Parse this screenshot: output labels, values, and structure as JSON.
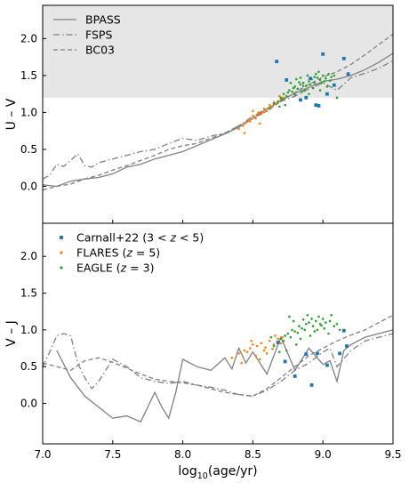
{
  "chart_data": [
    {
      "type": "line",
      "panel": "top",
      "xlim": [
        7.0,
        9.5
      ],
      "ylim": [
        -0.5,
        2.45
      ],
      "ylabel": "U – V",
      "yticks": [
        "0.0",
        "0.5",
        "1.0",
        "1.5",
        "2.0"
      ],
      "yticks_values": [
        0.0,
        0.5,
        1.0,
        1.5,
        2.0
      ],
      "shaded_region": {
        "y_from": 1.2,
        "y_to": 2.45,
        "color": "#e6e6e6"
      },
      "legend": {
        "placement": "top-left",
        "entries": [
          {
            "label": "BPASS",
            "style": "solid"
          },
          {
            "label": "FSPS",
            "style": "dashdot"
          },
          {
            "label": "BC03",
            "style": "dashed"
          }
        ]
      },
      "series": [
        {
          "name": "BPASS",
          "style": "solid",
          "color": "#808080",
          "x": [
            7.0,
            7.1,
            7.2,
            7.3,
            7.4,
            7.5,
            7.6,
            7.7,
            7.8,
            7.9,
            8.0,
            8.1,
            8.2,
            8.3,
            8.4,
            8.5,
            8.6,
            8.7,
            8.8,
            8.9,
            9.0,
            9.1,
            9.2,
            9.3,
            9.4,
            9.5
          ],
          "y": [
            0.02,
            0.0,
            0.07,
            0.1,
            0.12,
            0.17,
            0.26,
            0.3,
            0.37,
            0.42,
            0.47,
            0.55,
            0.63,
            0.71,
            0.8,
            0.92,
            1.05,
            1.16,
            1.26,
            1.34,
            1.42,
            1.45,
            1.5,
            1.58,
            1.68,
            1.8
          ]
        },
        {
          "name": "FSPS",
          "style": "dashdot",
          "color": "#808080",
          "x": [
            7.0,
            7.05,
            7.1,
            7.15,
            7.2,
            7.25,
            7.3,
            7.35,
            7.4,
            7.5,
            7.6,
            7.7,
            7.8,
            7.9,
            8.0,
            8.1,
            8.2,
            8.3,
            8.4,
            8.5,
            8.6,
            8.7,
            8.8,
            8.9,
            9.0,
            9.1,
            9.2,
            9.3,
            9.4,
            9.5
          ],
          "y": [
            0.1,
            0.15,
            0.3,
            0.27,
            0.35,
            0.44,
            0.28,
            0.26,
            0.32,
            0.37,
            0.42,
            0.47,
            0.5,
            0.58,
            0.65,
            0.62,
            0.68,
            0.72,
            0.82,
            0.95,
            1.05,
            1.15,
            1.22,
            1.32,
            1.4,
            1.3,
            1.47,
            1.53,
            1.6,
            1.7
          ]
        },
        {
          "name": "BC03",
          "style": "dashed",
          "color": "#808080",
          "x": [
            7.0,
            7.1,
            7.2,
            7.3,
            7.4,
            7.5,
            7.6,
            7.7,
            7.8,
            7.9,
            8.0,
            8.1,
            8.2,
            8.3,
            8.4,
            8.5,
            8.6,
            8.7,
            8.8,
            8.9,
            9.0,
            9.1,
            9.2,
            9.3,
            9.4,
            9.5
          ],
          "y": [
            -0.05,
            0.0,
            0.03,
            0.1,
            0.15,
            0.22,
            0.28,
            0.35,
            0.42,
            0.5,
            0.55,
            0.58,
            0.65,
            0.72,
            0.82,
            0.92,
            1.02,
            1.15,
            1.27,
            1.38,
            1.48,
            1.55,
            1.65,
            1.78,
            1.92,
            2.06
          ]
        }
      ],
      "scatter": {
        "carnall": {
          "name": "Carnall+22 (3 < z < 5)",
          "color": "#1f77b4",
          "x": [
            8.67,
            8.74,
            8.84,
            8.88,
            8.91,
            8.95,
            8.97,
            9.0,
            9.03,
            9.08,
            9.15,
            9.18
          ],
          "y": [
            1.69,
            1.44,
            1.17,
            1.2,
            1.46,
            1.1,
            1.09,
            1.79,
            1.25,
            1.37,
            1.73,
            1.52
          ]
        },
        "flares": {
          "name": "FLARES (z = 5)",
          "color": "#ff7f0e",
          "x": [
            8.4,
            8.43,
            8.45,
            8.47,
            8.5,
            8.52,
            8.54,
            8.56,
            8.58,
            8.6,
            8.62,
            8.64,
            8.66,
            8.68,
            8.7,
            8.72,
            8.44,
            8.48,
            8.53,
            8.57,
            8.61,
            8.65,
            8.69,
            8.5,
            8.55
          ],
          "y": [
            0.78,
            0.82,
            0.86,
            0.9,
            0.95,
            0.92,
            1.0,
            0.98,
            1.05,
            1.02,
            1.1,
            1.08,
            1.12,
            1.15,
            1.18,
            1.2,
            0.72,
            0.88,
            0.97,
            1.0,
            1.06,
            1.14,
            1.22,
            1.02,
            0.85
          ]
        },
        "eagle": {
          "name": "EAGLE (z = 3)",
          "color": "#2ca02c",
          "x": [
            8.62,
            8.65,
            8.68,
            8.7,
            8.72,
            8.74,
            8.76,
            8.78,
            8.8,
            8.82,
            8.84,
            8.86,
            8.88,
            8.9,
            8.92,
            8.94,
            8.96,
            8.98,
            9.0,
            9.02,
            9.04,
            9.06,
            9.08,
            8.71,
            8.75,
            8.79,
            8.83,
            8.87,
            8.91,
            8.95,
            8.99,
            9.03,
            8.77,
            8.81,
            8.85,
            8.89,
            8.93,
            8.97,
            9.01,
            8.86,
            8.9,
            8.94,
            8.8,
            8.84,
            8.98,
            9.05,
            8.73,
            8.69,
            9.1
          ],
          "y": [
            1.05,
            1.12,
            1.15,
            1.2,
            1.25,
            1.22,
            1.3,
            1.28,
            1.35,
            1.32,
            1.38,
            1.4,
            1.36,
            1.42,
            1.45,
            1.4,
            1.47,
            1.44,
            1.5,
            1.46,
            1.52,
            1.48,
            1.5,
            1.18,
            1.27,
            1.33,
            1.41,
            1.3,
            1.38,
            1.52,
            1.4,
            1.35,
            1.4,
            1.45,
            1.28,
            1.5,
            1.33,
            1.55,
            1.42,
            1.36,
            1.25,
            1.48,
            1.24,
            1.47,
            1.3,
            1.43,
            1.1,
            1.08,
            1.2
          ]
        }
      }
    },
    {
      "type": "line",
      "panel": "bottom",
      "xlim": [
        7.0,
        9.5
      ],
      "ylim": [
        -0.55,
        2.45
      ],
      "xlabel": "log10(age/yr)",
      "ylabel": "V – J",
      "xticks": [
        "7.0",
        "7.5",
        "8.0",
        "8.5",
        "9.0",
        "9.5"
      ],
      "xticks_values": [
        7.0,
        7.5,
        8.0,
        8.5,
        9.0,
        9.5
      ],
      "yticks": [
        "0.0",
        "0.5",
        "1.0",
        "1.5",
        "2.0"
      ],
      "yticks_values": [
        0.0,
        0.5,
        1.0,
        1.5,
        2.0
      ],
      "legend": {
        "placement": "top-left",
        "entries": [
          {
            "label_parts": [
              "Carnall+22 (3 < ",
              "z",
              " < 5)"
            ],
            "marker": "square",
            "color": "#1f77b4"
          },
          {
            "label_parts": [
              "FLARES (",
              "z",
              " = 5)"
            ],
            "marker": "dot",
            "color": "#ff7f0e"
          },
          {
            "label_parts": [
              "EAGLE (",
              "z",
              " = 3)"
            ],
            "marker": "dot",
            "color": "#2ca02c"
          }
        ]
      },
      "series": [
        {
          "name": "BPASS",
          "style": "solid",
          "color": "#808080",
          "x": [
            7.1,
            7.2,
            7.3,
            7.4,
            7.5,
            7.6,
            7.7,
            7.8,
            7.85,
            7.9,
            7.95,
            8.0,
            8.1,
            8.2,
            8.3,
            8.35,
            8.4,
            8.45,
            8.5,
            8.6,
            8.7,
            8.8,
            8.9,
            9.0,
            9.05,
            9.1,
            9.15,
            9.2,
            9.3,
            9.4,
            9.5
          ],
          "y": [
            0.72,
            0.35,
            0.1,
            -0.05,
            -0.2,
            -0.17,
            -0.25,
            0.15,
            -0.05,
            -0.2,
            0.15,
            0.6,
            0.5,
            0.45,
            0.62,
            0.47,
            0.75,
            0.55,
            0.7,
            0.4,
            0.9,
            0.45,
            0.75,
            0.53,
            0.58,
            0.3,
            0.72,
            0.8,
            0.9,
            0.95,
            1.0
          ]
        },
        {
          "name": "FSPS",
          "style": "dashdot",
          "color": "#808080",
          "x": [
            7.0,
            7.05,
            7.1,
            7.15,
            7.2,
            7.25,
            7.3,
            7.35,
            7.4,
            7.5,
            7.6,
            7.7,
            7.8,
            7.9,
            8.0,
            8.1,
            8.2,
            8.3,
            8.4,
            8.5,
            8.6,
            8.7,
            8.8,
            8.9,
            9.0,
            9.05,
            9.1,
            9.2,
            9.3,
            9.4,
            9.5
          ],
          "y": [
            0.5,
            0.7,
            0.92,
            0.95,
            0.92,
            0.55,
            0.35,
            0.2,
            0.3,
            0.6,
            0.5,
            0.35,
            0.3,
            0.27,
            0.3,
            0.25,
            0.22,
            0.18,
            0.12,
            0.1,
            0.18,
            0.3,
            0.45,
            0.55,
            0.7,
            0.75,
            0.5,
            0.72,
            0.85,
            0.9,
            0.95
          ]
        },
        {
          "name": "BC03",
          "style": "dashed",
          "color": "#808080",
          "x": [
            7.0,
            7.1,
            7.2,
            7.3,
            7.4,
            7.5,
            7.6,
            7.7,
            7.8,
            7.9,
            8.0,
            8.1,
            8.2,
            8.3,
            8.4,
            8.5,
            8.6,
            8.7,
            8.8,
            8.9,
            9.0,
            9.1,
            9.2,
            9.3,
            9.4,
            9.5
          ],
          "y": [
            0.55,
            0.5,
            0.45,
            0.58,
            0.62,
            0.56,
            0.48,
            0.4,
            0.33,
            0.3,
            0.28,
            0.25,
            0.2,
            0.15,
            0.12,
            0.1,
            0.2,
            0.35,
            0.5,
            0.65,
            0.75,
            0.85,
            0.93,
            1.0,
            1.1,
            1.2
          ]
        }
      ],
      "scatter": {
        "carnall": {
          "name": "Carnall+22 (3 < z < 5)",
          "color": "#1f77b4",
          "x": [
            8.68,
            8.73,
            8.8,
            8.88,
            8.92,
            8.96,
            9.03,
            9.12,
            9.15,
            9.17
          ],
          "y": [
            0.83,
            0.57,
            0.37,
            0.67,
            0.25,
            0.68,
            0.52,
            0.68,
            0.99,
            0.78
          ]
        },
        "flares": {
          "name": "FLARES (z = 5)",
          "color": "#ff7f0e",
          "x": [
            8.35,
            8.4,
            8.44,
            8.48,
            8.5,
            8.53,
            8.56,
            8.59,
            8.62,
            8.65,
            8.68,
            8.71,
            8.42,
            8.46,
            8.52,
            8.58,
            8.64,
            8.7,
            8.55,
            8.6,
            8.49,
            8.66
          ],
          "y": [
            0.62,
            0.68,
            0.72,
            0.75,
            0.8,
            0.78,
            0.82,
            0.76,
            0.85,
            0.8,
            0.88,
            0.9,
            0.55,
            0.7,
            0.65,
            0.72,
            0.74,
            0.82,
            0.6,
            0.68,
            0.85,
            0.92
          ]
        },
        "eagle": {
          "name": "EAGLE (z = 3)",
          "color": "#2ca02c",
          "x": [
            8.65,
            8.68,
            8.7,
            8.73,
            8.75,
            8.78,
            8.8,
            8.83,
            8.85,
            8.88,
            8.9,
            8.93,
            8.95,
            8.98,
            9.0,
            9.02,
            9.05,
            9.08,
            9.1,
            8.72,
            8.77,
            8.82,
            8.87,
            8.92,
            8.97,
            9.01,
            9.04,
            8.79,
            8.84,
            8.89,
            8.94,
            8.99,
            8.86,
            8.91,
            8.96,
            8.81,
            8.76,
            9.06,
            8.74,
            8.69,
            9.12,
            8.63
          ],
          "y": [
            0.78,
            0.82,
            0.88,
            0.92,
            0.95,
            1.0,
            0.98,
            1.05,
            1.02,
            1.08,
            1.1,
            1.05,
            1.12,
            1.08,
            1.15,
            1.1,
            1.12,
            1.05,
            1.08,
            0.85,
            0.9,
            0.96,
            1.0,
            1.15,
            1.18,
            1.02,
            0.95,
            1.12,
            0.88,
            1.2,
            0.98,
            1.06,
            1.14,
            0.92,
            1.0,
            0.8,
            1.18,
            1.2,
            0.72,
            0.7,
            1.0,
            0.9
          ]
        }
      }
    }
  ]
}
